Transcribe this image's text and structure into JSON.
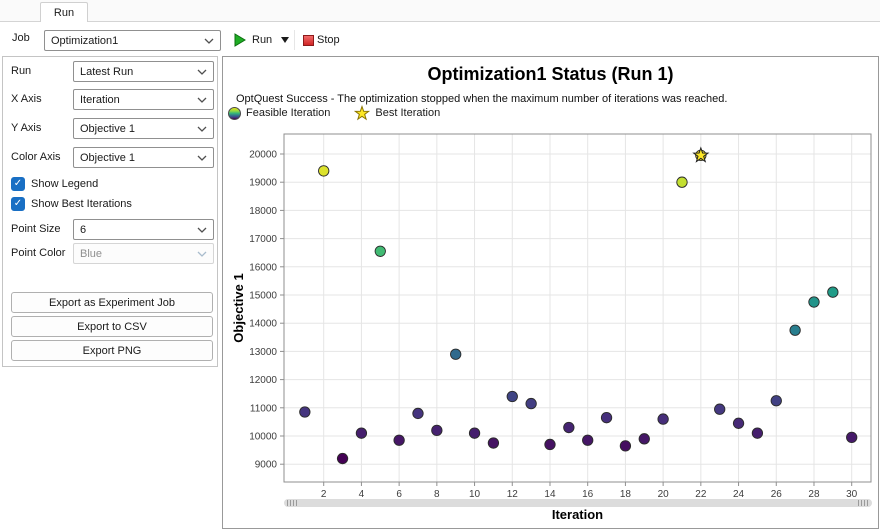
{
  "tab": {
    "label": "Run"
  },
  "toolbar": {
    "job_label": "Job",
    "job_value": "Optimization1",
    "run_label": "Run",
    "stop_label": "Stop"
  },
  "sidebar": {
    "selects": [
      {
        "label": "Run",
        "value": "Latest Run"
      },
      {
        "label": "X Axis",
        "value": "Iteration"
      },
      {
        "label": "Y Axis",
        "value": "Objective 1"
      },
      {
        "label": "Color Axis",
        "value": "Objective 1"
      }
    ],
    "checkboxes": [
      {
        "label": "Show Legend",
        "checked": true
      },
      {
        "label": "Show Best Iterations",
        "checked": true
      }
    ],
    "point_selects": [
      {
        "label": "Point Size",
        "value": "6",
        "disabled": false
      },
      {
        "label": "Point Color",
        "value": "Blue",
        "disabled": true
      }
    ],
    "buttons": [
      "Export as Experiment Job",
      "Export to CSV",
      "Export PNG"
    ]
  },
  "icons": {
    "checkbox_check": "✓"
  },
  "chart_data": {
    "type": "scatter",
    "title": "Optimization1 Status (Run 1)",
    "subtitle": "OptQuest Success - The optimization stopped when the maximum number of iterations was reached.",
    "legend": [
      {
        "label": "Feasible Iteration",
        "marker": "gradient-circle"
      },
      {
        "label": "Best Iteration",
        "marker": "star"
      }
    ],
    "xlabel": "Iteration",
    "ylabel": "Objective 1",
    "x_ticks": [
      2,
      4,
      6,
      8,
      10,
      12,
      14,
      16,
      18,
      20,
      22,
      24,
      26,
      28,
      30
    ],
    "y_ticks": [
      9000,
      10000,
      11000,
      12000,
      13000,
      14000,
      15000,
      16000,
      17000,
      18000,
      19000,
      20000
    ],
    "xlim": [
      0.8,
      31.1
    ],
    "ylim": [
      8400,
      20700
    ],
    "grid": true,
    "legend_position": "top-left",
    "best_iteration": 22,
    "colormap": [
      "#440154",
      "#46327e",
      "#365c8d",
      "#277f8e",
      "#1fa187",
      "#4ac16d",
      "#a0da39",
      "#fde725"
    ],
    "chart_colors": {
      "grid": "#e5e5e5",
      "border": "#8f8f8f",
      "tick_text": "#3d3d3d",
      "point_edge": "#2b2b2b",
      "best_marker": "#fde725"
    },
    "points": [
      {
        "x": 1,
        "y": 10850
      },
      {
        "x": 2,
        "y": 19400
      },
      {
        "x": 3,
        "y": 9200
      },
      {
        "x": 4,
        "y": 10100
      },
      {
        "x": 5,
        "y": 16550
      },
      {
        "x": 6,
        "y": 9850
      },
      {
        "x": 7,
        "y": 10800
      },
      {
        "x": 8,
        "y": 10200
      },
      {
        "x": 9,
        "y": 12900
      },
      {
        "x": 10,
        "y": 10100
      },
      {
        "x": 11,
        "y": 9750
      },
      {
        "x": 12,
        "y": 11400
      },
      {
        "x": 13,
        "y": 11150
      },
      {
        "x": 14,
        "y": 9700
      },
      {
        "x": 15,
        "y": 10300
      },
      {
        "x": 16,
        "y": 9850
      },
      {
        "x": 17,
        "y": 10650
      },
      {
        "x": 18,
        "y": 9650
      },
      {
        "x": 19,
        "y": 9900
      },
      {
        "x": 20,
        "y": 10600
      },
      {
        "x": 21,
        "y": 19000
      },
      {
        "x": 22,
        "y": 19950,
        "best": true
      },
      {
        "x": 23,
        "y": 10950
      },
      {
        "x": 24,
        "y": 10450
      },
      {
        "x": 25,
        "y": 10100
      },
      {
        "x": 26,
        "y": 11250
      },
      {
        "x": 27,
        "y": 13750
      },
      {
        "x": 28,
        "y": 14750
      },
      {
        "x": 29,
        "y": 15100
      },
      {
        "x": 30,
        "y": 9950
      }
    ]
  }
}
